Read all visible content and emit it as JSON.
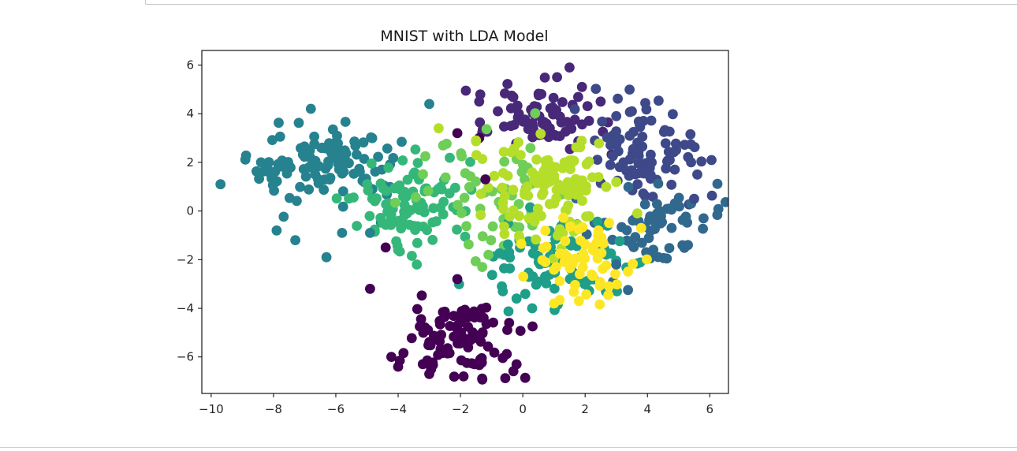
{
  "chart_data": {
    "type": "scatter",
    "title": "MNIST with LDA Model",
    "xlabel": "",
    "ylabel": "",
    "xlim": [
      -10.3,
      6.6
    ],
    "ylim": [
      -7.5,
      6.6
    ],
    "x_ticks": [
      -10,
      -8,
      -6,
      -4,
      -2,
      0,
      2,
      4,
      6
    ],
    "x_tick_labels": [
      "−10",
      "−8",
      "−6",
      "−4",
      "−2",
      "0",
      "2",
      "4",
      "6"
    ],
    "y_ticks": [
      6,
      4,
      2,
      0,
      -2,
      -4,
      -6
    ],
    "y_tick_labels": [
      "6",
      "4",
      "2",
      "0",
      "−2",
      "−4",
      "−6"
    ],
    "grid": false,
    "legend": "none",
    "colormap": "viridis",
    "color_by": "class label (10 classes, 0–9)",
    "palette": [
      "#440154",
      "#482878",
      "#3e4989",
      "#31688e",
      "#26828e",
      "#1f9e89",
      "#35b779",
      "#6ece58",
      "#b5de2b",
      "#fde725"
    ],
    "clusters": [
      {
        "class": 0,
        "center": [
          -2.1,
          -5.3
        ],
        "spread": [
          0.8,
          0.75
        ],
        "n": 95
      },
      {
        "class": 1,
        "center": [
          0.5,
          3.8
        ],
        "spread": [
          1.0,
          0.75
        ],
        "n": 70
      },
      {
        "class": 2,
        "center": [
          4.0,
          2.2
        ],
        "spread": [
          0.8,
          1.0
        ],
        "n": 90
      },
      {
        "class": 3,
        "center": [
          4.0,
          -0.8
        ],
        "spread": [
          0.9,
          0.9
        ],
        "n": 60
      },
      {
        "class": 4,
        "center": [
          -6.3,
          1.9
        ],
        "spread": [
          1.2,
          0.8
        ],
        "n": 110
      },
      {
        "class": 5,
        "center": [
          1.0,
          -2.2
        ],
        "spread": [
          1.2,
          0.9
        ],
        "n": 80
      },
      {
        "class": 6,
        "center": [
          -3.5,
          0.3
        ],
        "spread": [
          0.8,
          0.9
        ],
        "n": 100
      },
      {
        "class": 7,
        "center": [
          -1.0,
          0.8
        ],
        "spread": [
          1.2,
          1.3
        ],
        "n": 55
      },
      {
        "class": 8,
        "center": [
          1.0,
          0.7
        ],
        "spread": [
          1.1,
          1.1
        ],
        "n": 120
      },
      {
        "class": 9,
        "center": [
          2.0,
          -2.0
        ],
        "spread": [
          0.8,
          0.8
        ],
        "n": 60
      }
    ],
    "points": [
      {
        "x": -9.7,
        "y": 1.1,
        "class": 4
      },
      {
        "x": -8.4,
        "y": 2.0,
        "class": 4
      },
      {
        "x": -7.9,
        "y": -0.8,
        "class": 4
      },
      {
        "x": -7.3,
        "y": -1.2,
        "class": 4
      },
      {
        "x": -6.8,
        "y": 4.2,
        "class": 4
      },
      {
        "x": -6.3,
        "y": -1.9,
        "class": 4
      },
      {
        "x": -5.8,
        "y": -0.9,
        "class": 4
      },
      {
        "x": -4.9,
        "y": -0.9,
        "class": 4
      },
      {
        "x": -3.0,
        "y": 4.4,
        "class": 4
      },
      {
        "x": -4.9,
        "y": -3.2,
        "class": 0
      },
      {
        "x": -4.4,
        "y": -1.5,
        "class": 0
      },
      {
        "x": -4.0,
        "y": -6.4,
        "class": 0
      },
      {
        "x": -3.0,
        "y": -6.7,
        "class": 0
      },
      {
        "x": -1.9,
        "y": -6.8,
        "class": 0
      },
      {
        "x": -0.2,
        "y": -6.3,
        "class": 0
      },
      {
        "x": -2.1,
        "y": -2.8,
        "class": 0
      },
      {
        "x": -1.4,
        "y": 3.0,
        "class": 0
      },
      {
        "x": -1.2,
        "y": 1.3,
        "class": 0
      },
      {
        "x": -2.1,
        "y": 3.2,
        "class": 0
      },
      {
        "x": 1.5,
        "y": 5.9,
        "class": 1
      },
      {
        "x": 1.1,
        "y": 5.5,
        "class": 1
      },
      {
        "x": 1.9,
        "y": 5.1,
        "class": 1
      },
      {
        "x": -1.4,
        "y": 4.5,
        "class": 1
      },
      {
        "x": -0.8,
        "y": 4.1,
        "class": 1
      },
      {
        "x": 2.5,
        "y": 4.5,
        "class": 1
      },
      {
        "x": 3.0,
        "y": 3.9,
        "class": 2
      },
      {
        "x": 3.5,
        "y": 4.1,
        "class": 2
      },
      {
        "x": 5.4,
        "y": 2.0,
        "class": 2
      },
      {
        "x": 5.6,
        "y": 1.5,
        "class": 2
      },
      {
        "x": 5.5,
        "y": 0.5,
        "class": 2
      },
      {
        "x": 5.8,
        "y": -0.3,
        "class": 3
      },
      {
        "x": 5.3,
        "y": -1.4,
        "class": 3
      },
      {
        "x": 3.0,
        "y": -2.2,
        "class": 3
      },
      {
        "x": 0.3,
        "y": -4.0,
        "class": 5
      },
      {
        "x": -0.2,
        "y": -3.6,
        "class": 5
      },
      {
        "x": 1.0,
        "y": -3.8,
        "class": 9
      },
      {
        "x": 1.8,
        "y": -3.7,
        "class": 9
      },
      {
        "x": 3.8,
        "y": -0.7,
        "class": 9
      },
      {
        "x": -1.5,
        "y": 2.9,
        "class": 8
      },
      {
        "x": -2.7,
        "y": 3.4,
        "class": 8
      },
      {
        "x": -3.4,
        "y": -2.2,
        "class": 6
      },
      {
        "x": -4.0,
        "y": -1.6,
        "class": 6
      },
      {
        "x": -1.1,
        "y": -1.8,
        "class": 7
      },
      {
        "x": -1.3,
        "y": -2.3,
        "class": 7
      }
    ]
  }
}
